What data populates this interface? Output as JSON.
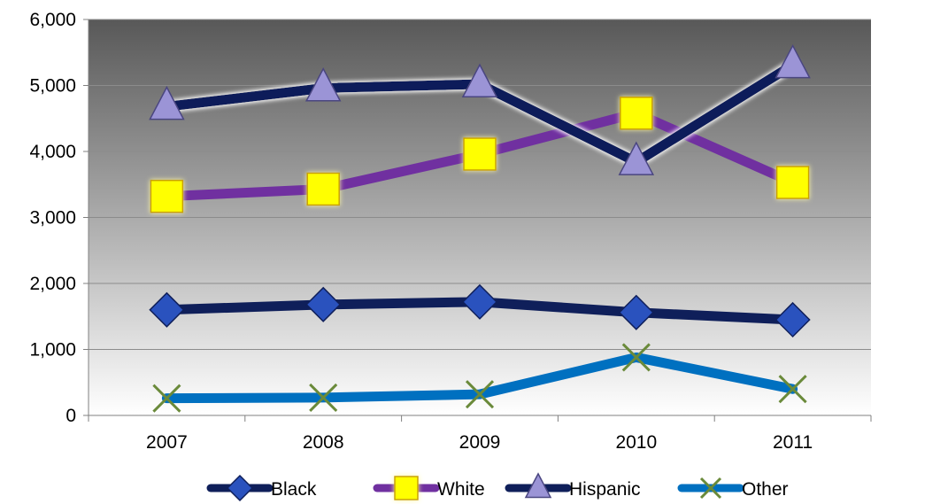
{
  "chart_data": {
    "type": "line",
    "title": "",
    "xlabel": "",
    "ylabel": "",
    "categories": [
      "2007",
      "2008",
      "2009",
      "2010",
      "2011"
    ],
    "ylim": [
      0,
      6000
    ],
    "yticks": [
      0,
      1000,
      2000,
      3000,
      4000,
      5000,
      6000
    ],
    "ytick_labels": [
      "0",
      "1,000",
      "2,000",
      "3,000",
      "4,000",
      "5,000",
      "6,000"
    ],
    "grid": true,
    "legend_position": "bottom",
    "series": [
      {
        "name": "Black",
        "values": [
          1600,
          1680,
          1720,
          1560,
          1450
        ],
        "color": "#0f1f5a",
        "marker": "diamond",
        "marker_color": "#2a52be"
      },
      {
        "name": "White",
        "values": [
          3320,
          3430,
          3960,
          4580,
          3530
        ],
        "color": "#7030a0",
        "marker": "square",
        "marker_color": "#ffff00"
      },
      {
        "name": "Hispanic",
        "values": [
          4680,
          4960,
          5020,
          3840,
          5310
        ],
        "color": "#0f1f5a",
        "marker": "triangle",
        "marker_color": "#9b94d6"
      },
      {
        "name": "Other",
        "values": [
          260,
          270,
          320,
          880,
          400
        ],
        "color": "#0070c0",
        "marker": "x",
        "marker_color": "#6a8a3a"
      }
    ]
  }
}
